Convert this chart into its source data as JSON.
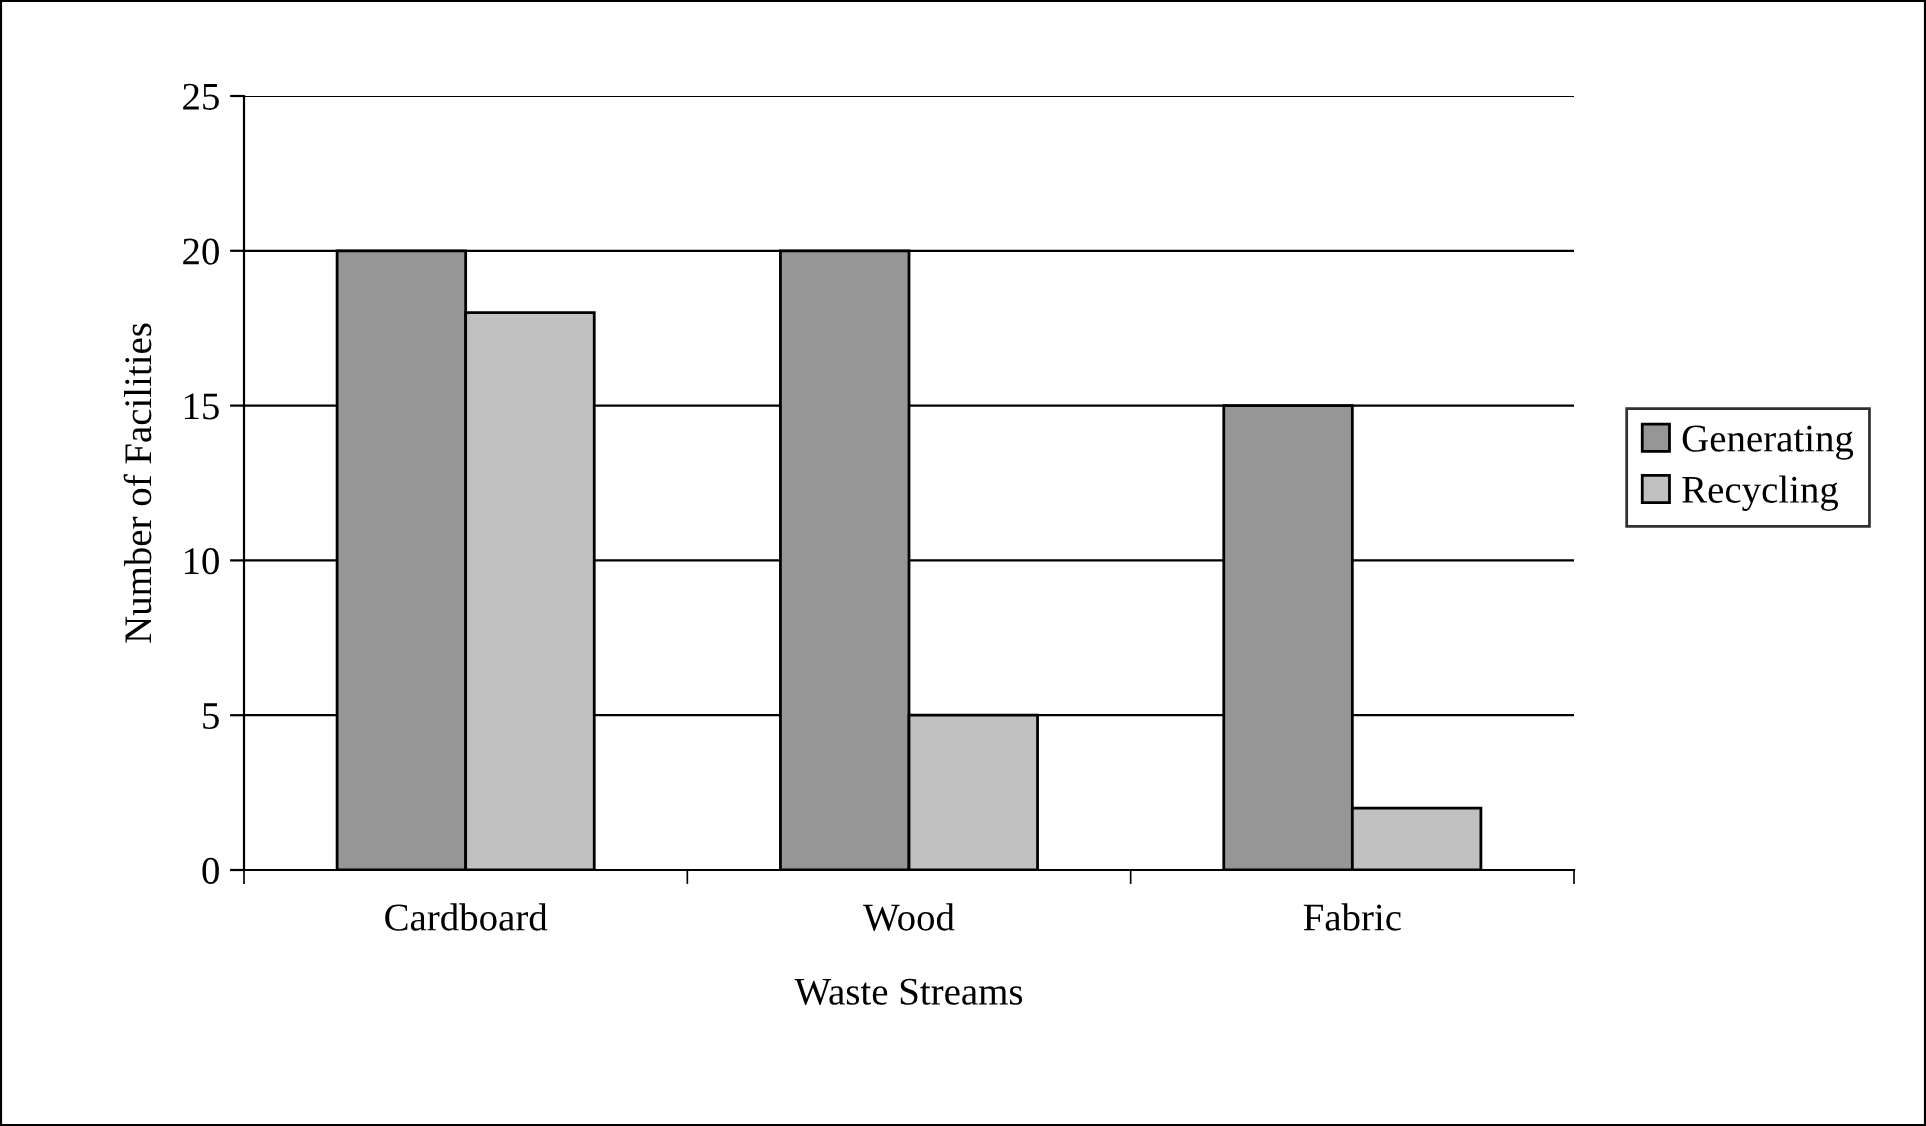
{
  "chart_data": {
    "type": "bar",
    "xlabel": "Waste Streams",
    "ylabel": "Number of Facilities",
    "categories": [
      "Cardboard",
      "Wood",
      "Fabric"
    ],
    "series": [
      {
        "name": "Generating",
        "color": "#969696",
        "values": [
          20,
          20,
          15
        ]
      },
      {
        "name": "Recycling",
        "color": "#c0c0c0",
        "values": [
          18,
          5,
          2
        ]
      }
    ],
    "ylim": [
      0,
      25
    ],
    "yticks": [
      0,
      5,
      10,
      15,
      20,
      25
    ],
    "grid": "y",
    "legend": "right"
  }
}
